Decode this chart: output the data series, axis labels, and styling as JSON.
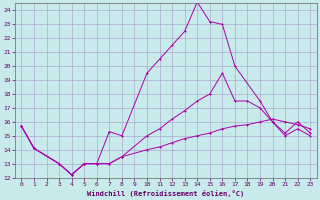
{
  "title": "",
  "xlabel": "Windchill (Refroidissement éolien,°C)",
  "ylabel": "",
  "bg_color": "#c8eaea",
  "grid_color": "#aaaacc",
  "line_color": "#aa00aa",
  "xlim": [
    -0.5,
    23.5
  ],
  "ylim": [
    12,
    24.5
  ],
  "xticks": [
    0,
    1,
    2,
    3,
    4,
    5,
    6,
    7,
    8,
    9,
    10,
    11,
    12,
    13,
    14,
    15,
    16,
    17,
    18,
    19,
    20,
    21,
    22,
    23
  ],
  "yticks": [
    12,
    13,
    14,
    15,
    16,
    17,
    18,
    19,
    20,
    21,
    22,
    23,
    24
  ],
  "line1_x": [
    0,
    1,
    3,
    4,
    5,
    6,
    7,
    8,
    10,
    11,
    12,
    13,
    14,
    15,
    16,
    17,
    19,
    20,
    21,
    22,
    23
  ],
  "line1_y": [
    15.7,
    14.1,
    13.0,
    12.2,
    13.0,
    13.0,
    15.3,
    15.0,
    19.5,
    20.5,
    21.5,
    22.5,
    24.6,
    23.2,
    23.0,
    20.0,
    17.5,
    16.0,
    15.0,
    15.5,
    15.0
  ],
  "line2_x": [
    0,
    1,
    3,
    4,
    5,
    6,
    7,
    8,
    10,
    11,
    12,
    13,
    14,
    15,
    16,
    17,
    18,
    19,
    20,
    21,
    22,
    23
  ],
  "line2_y": [
    15.7,
    14.1,
    13.0,
    12.2,
    13.0,
    13.0,
    13.0,
    13.5,
    15.0,
    15.5,
    16.2,
    16.8,
    17.5,
    18.0,
    19.5,
    17.5,
    17.5,
    17.0,
    16.0,
    15.2,
    16.0,
    15.2
  ],
  "line3_x": [
    0,
    1,
    3,
    4,
    5,
    6,
    7,
    8,
    10,
    11,
    12,
    13,
    14,
    15,
    16,
    17,
    18,
    19,
    20,
    21,
    22,
    23
  ],
  "line3_y": [
    15.7,
    14.1,
    13.0,
    12.2,
    13.0,
    13.0,
    13.0,
    13.5,
    14.0,
    14.2,
    14.5,
    14.8,
    15.0,
    15.2,
    15.5,
    15.7,
    15.8,
    16.0,
    16.2,
    16.0,
    15.8,
    15.5
  ]
}
